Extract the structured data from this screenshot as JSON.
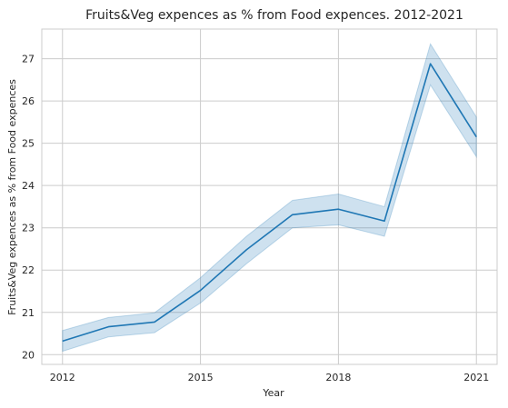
{
  "chart_data": {
    "type": "line",
    "title": "Fruits&Veg expences as % from Food expences. 2012-2021",
    "xlabel": "Year",
    "ylabel": "Fruits&Veg expences as % from Food expences",
    "x": [
      2012,
      2013,
      2014,
      2015,
      2016,
      2017,
      2018,
      2019,
      2020,
      2021
    ],
    "series": [
      {
        "values": [
          20.32,
          20.66,
          20.77,
          21.52,
          22.48,
          23.31,
          23.44,
          23.16,
          26.88,
          25.15
        ],
        "ci_lower": [
          20.08,
          20.42,
          20.52,
          21.22,
          22.15,
          23.0,
          23.07,
          22.8,
          26.38,
          24.68
        ],
        "ci_upper": [
          20.57,
          20.88,
          20.99,
          21.82,
          22.8,
          23.65,
          23.8,
          23.5,
          27.35,
          25.62
        ],
        "color": "#1f77b4"
      }
    ],
    "xticks": [
      2012,
      2015,
      2018,
      2021
    ],
    "yticks": [
      20,
      21,
      22,
      23,
      24,
      25,
      26,
      27
    ],
    "xlim": [
      2011.55,
      2021.45
    ],
    "ylim": [
      19.77,
      27.7
    ],
    "grid": true
  }
}
